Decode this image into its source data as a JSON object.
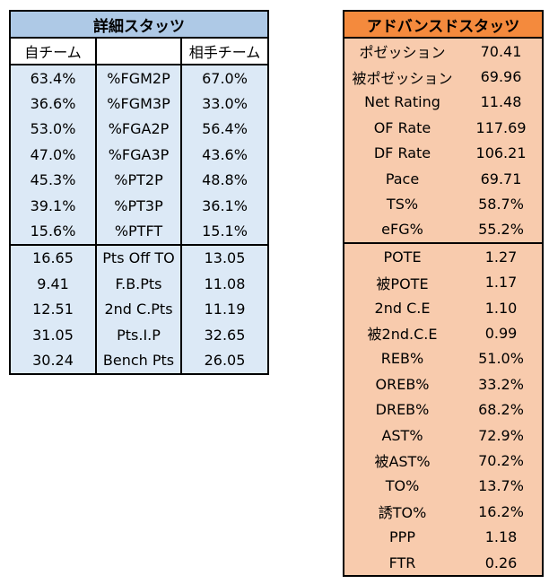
{
  "detail": {
    "title": "詳細スタッツ",
    "headers": [
      "自チーム",
      "",
      "相手チーム"
    ],
    "rows": [
      [
        "63.4%",
        "%FGM2P",
        "67.0%"
      ],
      [
        "36.6%",
        "%FGM3P",
        "33.0%"
      ],
      [
        "53.0%",
        "%FGA2P",
        "56.4%"
      ],
      [
        "47.0%",
        "%FGA3P",
        "43.6%"
      ],
      [
        "45.3%",
        "%PT2P",
        "48.8%"
      ],
      [
        "39.1%",
        "%PT3P",
        "36.1%"
      ],
      [
        "15.6%",
        "%PTFT",
        "15.1%"
      ],
      [
        "16.65",
        "Pts Off TO",
        "13.05"
      ],
      [
        "9.41",
        "F.B.Pts",
        "11.08"
      ],
      [
        "12.51",
        "2nd C.Pts",
        "11.19"
      ],
      [
        "31.05",
        "Pts.I.P",
        "32.65"
      ],
      [
        "30.24",
        "Bench Pts",
        "26.05"
      ]
    ]
  },
  "advanced": {
    "title": "アドバンスドスタッツ",
    "rows": [
      [
        "ポゼッション",
        "70.41"
      ],
      [
        "被ポゼッション",
        "69.96"
      ],
      [
        "Net Rating",
        "11.48"
      ],
      [
        "OF Rate",
        "117.69"
      ],
      [
        "DF Rate",
        "106.21"
      ],
      [
        "Pace",
        "69.71"
      ],
      [
        "TS%",
        "58.7%"
      ],
      [
        "eFG%",
        "55.2%"
      ],
      [
        "POTE",
        "1.27"
      ],
      [
        "被POTE",
        "1.17"
      ],
      [
        "2nd C.E",
        "1.10"
      ],
      [
        "被2nd.C.E",
        "0.99"
      ],
      [
        "REB%",
        "51.0%"
      ],
      [
        "OREB%",
        "33.2%"
      ],
      [
        "DREB%",
        "68.2%"
      ],
      [
        "AST%",
        "72.9%"
      ],
      [
        "被AST%",
        "70.2%"
      ],
      [
        "TO%",
        "13.7%"
      ],
      [
        "誘TO%",
        "16.2%"
      ],
      [
        "PPP",
        "1.18"
      ],
      [
        "FTR",
        "0.26"
      ]
    ]
  },
  "colors": {
    "detail_header": "#aec9e6",
    "detail_body": "#dce9f6",
    "advanced_header": "#f48a3d",
    "advanced_body": "#f8cbad"
  }
}
